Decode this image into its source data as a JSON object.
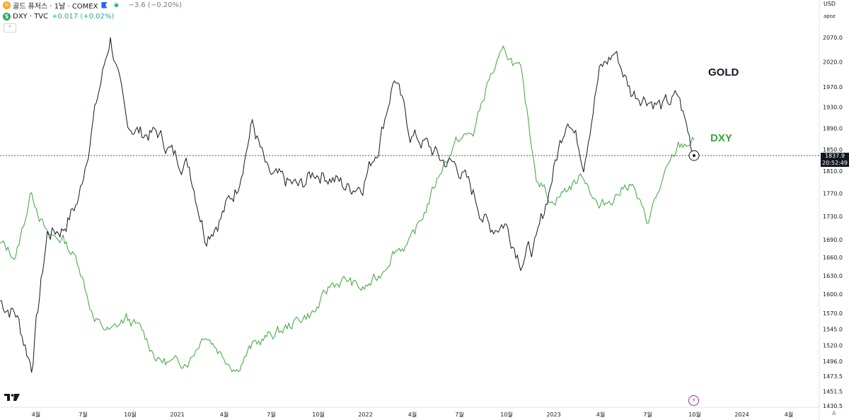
{
  "legend": {
    "gold": {
      "badge": "⚖",
      "title": "골드 퓨처스 · 1날 · COMEX",
      "change": "−3.6 (−0.20%)"
    },
    "dxy": {
      "badge": "S",
      "title": "DXY · TVC",
      "change": "+0.017 (+0.02%)"
    }
  },
  "axis_top": {
    "currency": "USD",
    "mode": "apoz"
  },
  "price_tag": {
    "price": "1837.9",
    "countdown": "20:52:49"
  },
  "auto_label": "A",
  "collapse_label": "⌃",
  "flash_symbol": "⚡",
  "colors": {
    "gold": "#131722",
    "dxy": "#3aa53a",
    "dxy_label": "#3aa53a",
    "axis_text": "#131722",
    "grid": "#e0e3eb"
  },
  "chart_data": {
    "type": "line",
    "price_scale": {
      "ticks": [
        "2070.0",
        "2020.0",
        "1970.0",
        "1930.0",
        "1890.0",
        "1850.0",
        "1810.0",
        "1770.0",
        "1730.0",
        "1690.0",
        "1660.0",
        "1630.0",
        "1600.0",
        "1570.0",
        "1545.0",
        "1520.0",
        "1496.0",
        "1473.5",
        "1451.5",
        "1430.5"
      ],
      "log": true
    },
    "time_ticks": [
      "4월",
      "7월",
      "10월",
      "2021",
      "4월",
      "7월",
      "10월",
      "2022",
      "4월",
      "7월",
      "10월",
      "2023",
      "4월",
      "7월",
      "10월",
      "2024",
      "4월"
    ],
    "series": [
      {
        "name": "GOLD",
        "x": [
          "2020-02",
          "2020-03",
          "2020-04",
          "2020-05",
          "2020-06",
          "2020-07",
          "2020-08",
          "2020-09",
          "2020-10",
          "2020-11",
          "2020-12",
          "2021-01",
          "2021-02",
          "2021-03",
          "2021-04",
          "2021-05",
          "2021-06",
          "2021-07",
          "2021-08",
          "2021-09",
          "2021-10",
          "2021-11",
          "2021-12",
          "2022-01",
          "2022-02",
          "2022-03",
          "2022-04",
          "2022-05",
          "2022-06",
          "2022-07",
          "2022-08",
          "2022-09",
          "2022-10",
          "2022-11",
          "2022-12",
          "2023-01",
          "2023-02",
          "2023-03",
          "2023-04",
          "2023-05",
          "2023-06",
          "2023-07",
          "2023-08",
          "2023-09",
          "2023-10"
        ],
        "values": [
          1590,
          1570,
          1490,
          1700,
          1710,
          1760,
          1920,
          2070,
          1900,
          1880,
          1880,
          1840,
          1820,
          1700,
          1730,
          1780,
          1900,
          1800,
          1790,
          1780,
          1810,
          1800,
          1780,
          1790,
          1860,
          1990,
          1880,
          1860,
          1830,
          1820,
          1770,
          1710,
          1720,
          1660,
          1680,
          1800,
          1920,
          1830,
          2000,
          2040,
          1960,
          1950,
          1930,
          1950,
          1840
        ]
      },
      {
        "name": "DXY",
        "x": [
          "2020-02",
          "2020-03",
          "2020-04",
          "2020-05",
          "2020-06",
          "2020-07",
          "2020-08",
          "2020-09",
          "2020-10",
          "2020-11",
          "2020-12",
          "2021-01",
          "2021-02",
          "2021-03",
          "2021-04",
          "2021-05",
          "2021-06",
          "2021-07",
          "2021-08",
          "2021-09",
          "2021-10",
          "2021-11",
          "2021-12",
          "2022-01",
          "2022-02",
          "2022-03",
          "2022-04",
          "2022-05",
          "2022-06",
          "2022-07",
          "2022-08",
          "2022-09",
          "2022-10",
          "2022-11",
          "2022-12",
          "2023-01",
          "2023-02",
          "2023-03",
          "2023-04",
          "2023-05",
          "2023-06",
          "2023-07",
          "2023-08",
          "2023-09",
          "2023-10"
        ],
        "values": [
          99.0,
          98.0,
          102.8,
          99.5,
          99.3,
          97.5,
          93.3,
          92.5,
          93.5,
          92.6,
          90.5,
          90.2,
          90.5,
          92.5,
          91.0,
          89.8,
          91.5,
          92.2,
          92.7,
          93.5,
          94.0,
          96.0,
          96.3,
          95.6,
          96.5,
          98.5,
          99.0,
          101.5,
          104.5,
          106.5,
          107.0,
          111.0,
          113.0,
          111.5,
          104.0,
          102.0,
          103.0,
          104.0,
          101.5,
          102.5,
          103.5,
          100.5,
          103.5,
          106.0,
          106.5
        ]
      }
    ],
    "current_price": 1837.9,
    "grid": false
  }
}
